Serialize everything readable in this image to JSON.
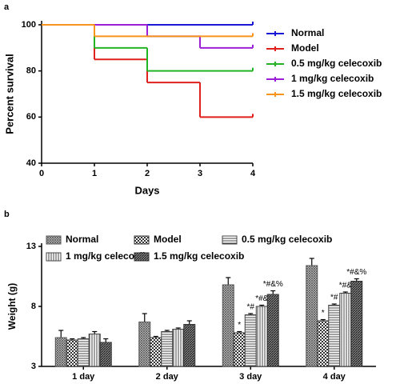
{
  "chart_data": [
    {
      "type": "step",
      "panel_label": "a",
      "xlabel": "Days",
      "ylabel": "Percent survival",
      "x": [
        0,
        1,
        2,
        3,
        4
      ],
      "xlim": [
        0,
        4
      ],
      "xticks": [
        0,
        1,
        2,
        3,
        4
      ],
      "ylim": [
        40,
        100
      ],
      "yticks": [
        40,
        60,
        80,
        100
      ],
      "legend": "right",
      "series": [
        {
          "name": "Normal",
          "color": "#1a1ad6",
          "values": [
            100,
            100,
            100,
            100,
            100
          ]
        },
        {
          "name": "Model",
          "color": "#e0201b",
          "values": [
            100,
            85,
            75,
            60,
            60
          ]
        },
        {
          "name": "0.5 mg/kg celecoxib",
          "color": "#22b422",
          "values": [
            100,
            90,
            80,
            80,
            80
          ]
        },
        {
          "name": "1 mg/kg celecoxib",
          "color": "#9b1fd6",
          "values": [
            100,
            100,
            95,
            90,
            90
          ]
        },
        {
          "name": "1.5 mg/kg celecoxib",
          "color": "#f7941d",
          "values": [
            100,
            95,
            95,
            95,
            95
          ]
        }
      ]
    },
    {
      "type": "bar",
      "panel_label": "b",
      "ylabel": "Weight (g)",
      "categories": [
        "1 day",
        "2 day",
        "3 day",
        "4 day"
      ],
      "ylim": [
        3,
        13
      ],
      "yticks": [
        3,
        8,
        13
      ],
      "legend": "top",
      "series": [
        {
          "name": "Normal",
          "color": "#555555",
          "pattern": "crosshatch",
          "values": [
            5.4,
            6.7,
            9.8,
            11.4
          ],
          "errors": [
            0.6,
            0.7,
            0.6,
            0.6
          ],
          "annotations": [
            null,
            null,
            null,
            null
          ]
        },
        {
          "name": "Model",
          "color": "#333333",
          "pattern": "checker",
          "values": [
            5.2,
            5.4,
            5.8,
            6.8
          ],
          "errors": [
            0.1,
            0.1,
            0.1,
            0.1
          ],
          "annotations": [
            null,
            null,
            "*",
            "*"
          ]
        },
        {
          "name": "0.5 mg/kg celecoxib",
          "color": "#444444",
          "pattern": "horizontal",
          "values": [
            5.3,
            5.9,
            7.3,
            8.1
          ],
          "errors": [
            0.1,
            0.1,
            0.1,
            0.1
          ],
          "annotations": [
            null,
            null,
            "*#",
            "*#"
          ]
        },
        {
          "name": "1 mg/kg celecoxib",
          "color": "#444444",
          "pattern": "vertical",
          "values": [
            5.7,
            6.1,
            8.0,
            9.1
          ],
          "errors": [
            0.2,
            0.1,
            0.1,
            0.1
          ],
          "annotations": [
            null,
            null,
            "*#&",
            "*#&"
          ]
        },
        {
          "name": "1.5 mg/kg celecoxib",
          "color": "#333333",
          "pattern": "diagonal",
          "values": [
            5.0,
            6.5,
            9.0,
            10.1
          ],
          "errors": [
            0.3,
            0.3,
            0.3,
            0.2
          ],
          "annotations": [
            null,
            null,
            "*#&%",
            "*#&%"
          ]
        }
      ]
    }
  ]
}
